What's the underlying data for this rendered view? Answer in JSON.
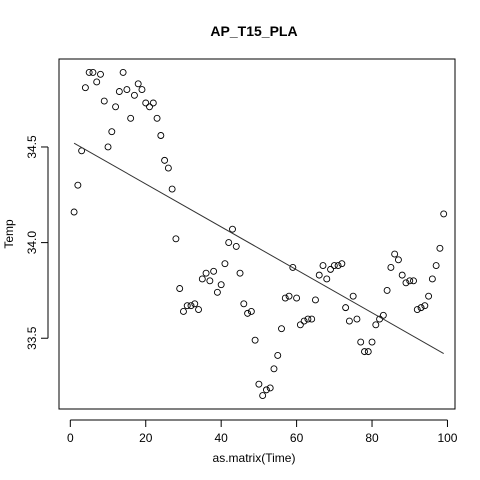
{
  "chart_data": {
    "type": "scatter",
    "title": "AP_T15_PLA",
    "xlabel": "as.matrix(Time)",
    "ylabel": "Temp",
    "xlim": [
      -3,
      102
    ],
    "ylim": [
      33.13,
      34.96
    ],
    "xticks": [
      0,
      20,
      40,
      60,
      80,
      100
    ],
    "yticks": [
      33.5,
      34.0,
      34.5
    ],
    "ytick_labels": [
      "33.5",
      "34.0",
      "34.5"
    ],
    "points": [
      [
        1,
        34.16
      ],
      [
        2,
        34.3
      ],
      [
        3,
        34.48
      ],
      [
        4,
        34.81
      ],
      [
        5,
        34.89
      ],
      [
        6,
        34.89
      ],
      [
        7,
        34.84
      ],
      [
        8,
        34.88
      ],
      [
        9,
        34.74
      ],
      [
        10,
        34.5
      ],
      [
        11,
        34.58
      ],
      [
        12,
        34.71
      ],
      [
        13,
        34.79
      ],
      [
        14,
        34.89
      ],
      [
        15,
        34.8
      ],
      [
        16,
        34.65
      ],
      [
        17,
        34.77
      ],
      [
        18,
        34.83
      ],
      [
        19,
        34.8
      ],
      [
        20,
        34.73
      ],
      [
        21,
        34.71
      ],
      [
        22,
        34.73
      ],
      [
        23,
        34.65
      ],
      [
        24,
        34.56
      ],
      [
        25,
        34.43
      ],
      [
        26,
        34.39
      ],
      [
        27,
        34.28
      ],
      [
        28,
        34.02
      ],
      [
        29,
        33.76
      ],
      [
        30,
        33.64
      ],
      [
        31,
        33.67
      ],
      [
        32,
        33.67
      ],
      [
        33,
        33.68
      ],
      [
        34,
        33.65
      ],
      [
        35,
        33.81
      ],
      [
        36,
        33.84
      ],
      [
        37,
        33.8
      ],
      [
        38,
        33.85
      ],
      [
        39,
        33.74
      ],
      [
        40,
        33.78
      ],
      [
        41,
        33.89
      ],
      [
        42,
        34.0
      ],
      [
        43,
        34.07
      ],
      [
        44,
        33.98
      ],
      [
        45,
        33.84
      ],
      [
        46,
        33.68
      ],
      [
        47,
        33.63
      ],
      [
        48,
        33.64
      ],
      [
        49,
        33.49
      ],
      [
        50,
        33.26
      ],
      [
        51,
        33.2
      ],
      [
        52,
        33.23
      ],
      [
        53,
        33.24
      ],
      [
        54,
        33.34
      ],
      [
        55,
        33.41
      ],
      [
        56,
        33.55
      ],
      [
        57,
        33.71
      ],
      [
        58,
        33.72
      ],
      [
        59,
        33.87
      ],
      [
        60,
        33.71
      ],
      [
        61,
        33.57
      ],
      [
        62,
        33.59
      ],
      [
        63,
        33.6
      ],
      [
        64,
        33.6
      ],
      [
        65,
        33.7
      ],
      [
        66,
        33.83
      ],
      [
        67,
        33.88
      ],
      [
        68,
        33.81
      ],
      [
        69,
        33.86
      ],
      [
        70,
        33.88
      ],
      [
        71,
        33.88
      ],
      [
        72,
        33.89
      ],
      [
        73,
        33.66
      ],
      [
        74,
        33.59
      ],
      [
        75,
        33.72
      ],
      [
        76,
        33.6
      ],
      [
        77,
        33.48
      ],
      [
        78,
        33.43
      ],
      [
        79,
        33.43
      ],
      [
        80,
        33.48
      ],
      [
        81,
        33.57
      ],
      [
        82,
        33.6
      ],
      [
        83,
        33.62
      ],
      [
        84,
        33.75
      ],
      [
        85,
        33.87
      ],
      [
        86,
        33.94
      ],
      [
        87,
        33.91
      ],
      [
        88,
        33.83
      ],
      [
        89,
        33.79
      ],
      [
        90,
        33.8
      ],
      [
        91,
        33.8
      ],
      [
        92,
        33.65
      ],
      [
        93,
        33.66
      ],
      [
        94,
        33.67
      ],
      [
        95,
        33.72
      ],
      [
        96,
        33.81
      ],
      [
        97,
        33.88
      ],
      [
        98,
        33.97
      ],
      [
        99,
        34.15
      ]
    ],
    "regression_line": {
      "x": [
        1,
        99
      ],
      "y": [
        34.52,
        33.42
      ]
    },
    "grid": false
  }
}
